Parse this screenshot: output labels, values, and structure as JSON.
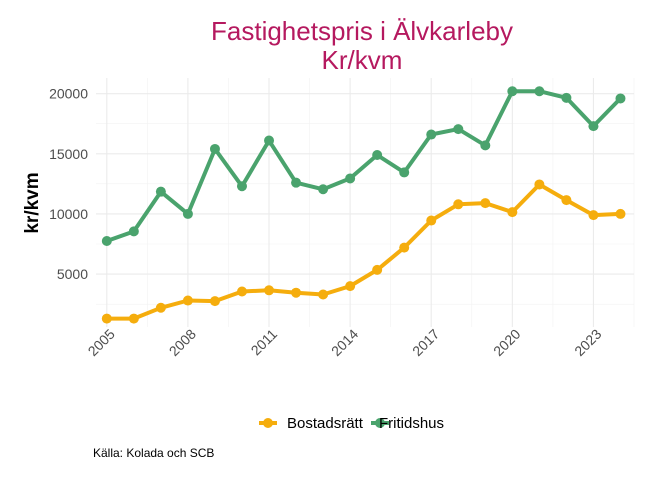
{
  "chart_data": {
    "type": "line",
    "title": "Fastighetspris i Älvkarleby",
    "subtitle": "Kr/kvm",
    "ylabel": "kr/kvm",
    "xlabel": "",
    "caption": "Källa: Kolada och SCB",
    "x": [
      2005,
      2006,
      2007,
      2008,
      2009,
      2010,
      2011,
      2012,
      2013,
      2014,
      2015,
      2016,
      2017,
      2018,
      2019,
      2020,
      2021,
      2022,
      2023,
      2024
    ],
    "x_ticks": [
      "2005",
      "2008",
      "2011",
      "2014",
      "2017",
      "2020",
      "2023"
    ],
    "y_ticks": [
      "5000",
      "10000",
      "15000",
      "20000"
    ],
    "xlim": [
      2004.6,
      2024.5
    ],
    "ylim": [
      600,
      21300
    ],
    "grid": true,
    "legend_position": "bottom",
    "series": [
      {
        "name": "Bostadsrätt",
        "color": "#f5ad0d",
        "values": [
          1300,
          1300,
          2200,
          2800,
          2750,
          3550,
          3650,
          3450,
          3300,
          4000,
          5350,
          7200,
          9450,
          10800,
          10900,
          10150,
          12450,
          11150,
          9900,
          10000
        ]
      },
      {
        "name": "Fritidshus",
        "color": "#4aa36d",
        "values": [
          7750,
          8550,
          11850,
          10000,
          15400,
          12300,
          16100,
          12600,
          12050,
          12950,
          14900,
          13450,
          16600,
          17050,
          15700,
          20200,
          20200,
          19650,
          17300,
          19600
        ]
      }
    ],
    "title_color": "#b5195f"
  }
}
